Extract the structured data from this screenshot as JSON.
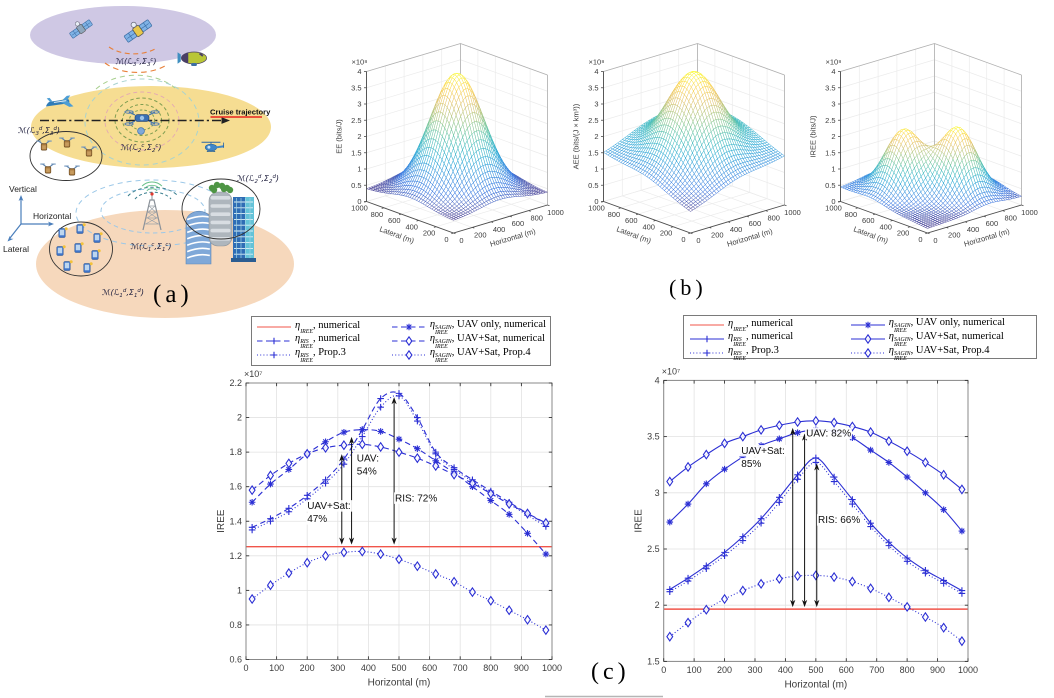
{
  "captions": {
    "a": "(a)",
    "b": "(b)",
    "c": "(c)"
  },
  "colors": {
    "curve_blue": "#2b2fd4",
    "baseline_red": "#f0554a",
    "grid": "#e2e2e2",
    "box": "#888888",
    "tick_text": "#3c3c3c",
    "annotation": "#111111",
    "space_ellipse": "#cfc8e4",
    "air_ellipse": "#f6dd92",
    "ground_ellipse": "#f6d8bc",
    "axis_blue": "#4a7ebb",
    "cruise_red": "#e8241c"
  },
  "diagram": {
    "axis_labels": {
      "vertical": "Vertical",
      "horizontal": "Horizontal",
      "lateral": "Lateral"
    },
    "cruise_label": "Cruise trajectory",
    "node_labels": {
      "satellites": {
        "pre": "ℳ(ℒ",
        "sub1": "3",
        "sup1": "c",
        "mid": ",Σ",
        "sub2": "3",
        "sup2": "c",
        "post": ")"
      },
      "uav_swarm": {
        "pre": "ℳ(ℒ",
        "sub1": "3",
        "sup1": "d",
        "mid": ",Σ",
        "sub2": "3",
        "sup2": "d",
        "post": ")"
      },
      "uav_center": {
        "pre": "ℳ(ℒ",
        "sub1": "2",
        "sup1": "c",
        "mid": ",Σ",
        "sub2": "2",
        "sup2": "c",
        "post": ")"
      },
      "buildings": {
        "pre": "ℳ(ℒ",
        "sub1": "2",
        "sup1": "d",
        "mid": ",Σ",
        "sub2": "2",
        "sup2": "d",
        "post": ")"
      },
      "base_station": {
        "pre": "ℳ(ℒ",
        "sub1": "1",
        "sup1": "c",
        "mid": ",Σ",
        "sub2": "1",
        "sup2": "c",
        "post": ")"
      },
      "devices": {
        "pre": "ℳ(ℒ",
        "sub1": "1",
        "sup1": "d",
        "mid": ",Σ",
        "sub2": "1",
        "sup2": "d",
        "post": ")"
      }
    }
  },
  "chart_data": [
    {
      "id": "surface-ee",
      "type": "surface",
      "xlabel": "Horizontal (m)",
      "ylabel": "Lateral (m)",
      "zlabel": "EE (bits/J)",
      "exp_label": "×10⁸",
      "x_range": [
        0,
        1000
      ],
      "y_range": [
        0,
        1000
      ],
      "z_range": [
        0,
        4
      ],
      "x_tick_step": 200,
      "z_tick_step": 0.5,
      "grid_n": 40,
      "model": {
        "base": 0.38,
        "ramp_x": 0,
        "ramp_y": 0,
        "peaks": [
          {
            "x": 500,
            "y": 500,
            "amp": 3.62,
            "sigma": 300
          }
        ]
      }
    },
    {
      "id": "surface-aee",
      "type": "surface",
      "xlabel": "Horizontal (m)",
      "ylabel": "Lateral (m)",
      "zlabel": "AEE (bits/(J × km³))",
      "exp_label": "×10⁸",
      "x_range": [
        0,
        1000
      ],
      "y_range": [
        0,
        1000
      ],
      "z_range": [
        0,
        4
      ],
      "x_tick_step": 200,
      "z_tick_step": 0.5,
      "grid_n": 40,
      "model": {
        "base": 0.65,
        "ramp_x": 0.00085,
        "ramp_y": 0.00085,
        "peaks": [
          {
            "x": 500,
            "y": 500,
            "amp": 2.5,
            "sigma": 305
          }
        ]
      }
    },
    {
      "id": "surface-iree",
      "type": "surface",
      "xlabel": "Horizontal (m)",
      "ylabel": "Lateral (m)",
      "zlabel": "IREE (bits/J)",
      "exp_label": "×10⁸",
      "x_range": [
        0,
        1000
      ],
      "y_range": [
        0,
        1000
      ],
      "z_range": [
        0,
        4
      ],
      "x_tick_step": 200,
      "z_tick_step": 0.5,
      "grid_n": 40,
      "model": {
        "base": 0.14,
        "ramp_x": 0.00012,
        "ramp_y": 0.0003,
        "peaks": [
          {
            "x": 350,
            "y": 650,
            "amp": 1.85,
            "sigma": 210
          },
          {
            "x": 650,
            "y": 350,
            "amp": 2.0,
            "sigma": 210
          }
        ]
      }
    },
    {
      "id": "line-left",
      "type": "line",
      "xlabel": "Horizontal (m)",
      "ylabel": "IREE",
      "exp_label": "×10⁷",
      "xlim": [
        0,
        1000
      ],
      "ylim": [
        0.6,
        2.2
      ],
      "x_tick_step": 100,
      "y_tick_step": 0.2,
      "x": [
        20,
        80,
        140,
        200,
        260,
        320,
        380,
        440,
        500,
        560,
        620,
        680,
        740,
        800,
        860,
        920,
        980
      ],
      "series": [
        {
          "key": "iree-numerical",
          "style": "baseline",
          "value": 1.253
        },
        {
          "key": "ris-numerical",
          "style": "dashed",
          "marker": "plus",
          "values": [
            1.365,
            1.415,
            1.475,
            1.55,
            1.64,
            1.76,
            1.93,
            2.11,
            2.14,
            2.0,
            1.8,
            1.71,
            1.64,
            1.575,
            1.51,
            1.445,
            1.385
          ]
        },
        {
          "key": "ris-prop3",
          "style": "dotted",
          "marker": "plus",
          "values": [
            1.35,
            1.4,
            1.455,
            1.53,
            1.62,
            1.73,
            1.89,
            2.06,
            2.125,
            1.98,
            1.79,
            1.7,
            1.63,
            1.565,
            1.5,
            1.435,
            1.37
          ]
        },
        {
          "key": "sagin-uav-numerical",
          "style": "dashed",
          "marker": "star",
          "values": [
            1.51,
            1.615,
            1.7,
            1.79,
            1.86,
            1.915,
            1.93,
            1.92,
            1.875,
            1.82,
            1.75,
            1.68,
            1.6,
            1.52,
            1.44,
            1.33,
            1.21
          ]
        },
        {
          "key": "sagin-uavsat-numerical",
          "style": "dashed",
          "marker": "diamond",
          "values": [
            1.58,
            1.665,
            1.735,
            1.79,
            1.825,
            1.84,
            1.845,
            1.83,
            1.8,
            1.765,
            1.72,
            1.67,
            1.62,
            1.56,
            1.5,
            1.445,
            1.39
          ]
        },
        {
          "key": "sagin-uavsat-prop4",
          "style": "dotted",
          "marker": "diamond",
          "values": [
            0.95,
            1.03,
            1.1,
            1.16,
            1.2,
            1.22,
            1.225,
            1.21,
            1.18,
            1.14,
            1.095,
            1.05,
            0.99,
            0.94,
            0.885,
            0.83,
            0.77
          ]
        }
      ],
      "annotations": {
        "texts": [
          {
            "x": 200,
            "y": 1.47,
            "lines": [
              "UAV+Sat:",
              "47%"
            ]
          },
          {
            "x": 362,
            "y": 1.745,
            "lines": [
              "UAV:",
              "54%"
            ]
          },
          {
            "x": 487,
            "y": 1.515,
            "lines": [
              "RIS: 72%"
            ]
          }
        ],
        "arrows": [
          {
            "x": 313,
            "y1": 1.253,
            "y2": 1.8
          },
          {
            "x": 345,
            "y1": 1.253,
            "y2": 1.9
          },
          {
            "x": 484,
            "y1": 1.253,
            "y2": 2.13
          }
        ]
      }
    },
    {
      "id": "line-right",
      "type": "line",
      "xlabel": "Horizontal (m)",
      "ylabel": "IREE",
      "exp_label": "×10⁷",
      "xlim": [
        0,
        1000
      ],
      "ylim": [
        1.5,
        4.0
      ],
      "x_tick_step": 100,
      "y_tick_step": 0.5,
      "x": [
        20,
        80,
        140,
        200,
        260,
        320,
        380,
        440,
        500,
        560,
        620,
        680,
        740,
        800,
        860,
        920,
        980
      ],
      "series": [
        {
          "key": "iree-numerical",
          "style": "baseline",
          "value": 1.965
        },
        {
          "key": "ris-numerical",
          "style": "solid",
          "marker": "plus",
          "values": [
            2.14,
            2.24,
            2.35,
            2.47,
            2.61,
            2.77,
            2.96,
            3.16,
            3.31,
            3.14,
            2.94,
            2.73,
            2.56,
            2.42,
            2.31,
            2.22,
            2.13
          ]
        },
        {
          "key": "ris-prop3",
          "style": "dotted",
          "marker": "plus",
          "values": [
            2.12,
            2.215,
            2.325,
            2.44,
            2.575,
            2.73,
            2.915,
            3.12,
            3.27,
            3.1,
            2.9,
            2.7,
            2.53,
            2.39,
            2.285,
            2.195,
            2.105
          ]
        },
        {
          "key": "sagin-uav-numerical",
          "style": "solid",
          "marker": "star",
          "values": [
            2.74,
            2.9,
            3.08,
            3.21,
            3.32,
            3.42,
            3.48,
            3.535,
            3.56,
            3.55,
            3.49,
            3.38,
            3.27,
            3.14,
            3.0,
            2.85,
            2.66
          ]
        },
        {
          "key": "sagin-uavsat-numerical",
          "style": "solid",
          "marker": "diamond",
          "values": [
            3.1,
            3.23,
            3.34,
            3.44,
            3.5,
            3.56,
            3.6,
            3.63,
            3.64,
            3.625,
            3.59,
            3.54,
            3.46,
            3.37,
            3.27,
            3.16,
            3.03
          ]
        },
        {
          "key": "sagin-uavsat-prop4",
          "style": "dotted",
          "marker": "diamond",
          "values": [
            1.72,
            1.845,
            1.96,
            2.055,
            2.13,
            2.19,
            2.235,
            2.26,
            2.265,
            2.25,
            2.21,
            2.15,
            2.07,
            1.985,
            1.895,
            1.8,
            1.68
          ]
        }
      ],
      "annotations": {
        "texts": [
          {
            "x": 255,
            "y": 3.345,
            "lines": [
              "UAV+Sat:",
              "85%"
            ]
          },
          {
            "x": 468,
            "y": 3.5,
            "lines": [
              "UAV: 82%"
            ]
          },
          {
            "x": 507,
            "y": 2.73,
            "lines": [
              "RIS: 66%"
            ]
          }
        ],
        "arrows": [
          {
            "x": 424,
            "y1": 1.965,
            "y2": 3.595
          },
          {
            "x": 463,
            "y1": 1.965,
            "y2": 3.545
          },
          {
            "x": 503,
            "y1": 1.965,
            "y2": 3.28
          }
        ]
      }
    }
  ],
  "legend": {
    "entries": [
      {
        "key": "iree-numerical",
        "eta_sub": "IREE",
        "eta_sup": "",
        "rest": ", numerical",
        "color": "red",
        "left_style": "solid",
        "right_style": "solid",
        "marker": null,
        "col": 0
      },
      {
        "key": "ris-numerical",
        "eta_sub": "IREE",
        "eta_sup": "RIS",
        "rest": ", numerical",
        "color": "blue",
        "left_style": "dashed",
        "right_style": "solid",
        "marker": "plus",
        "col": 0
      },
      {
        "key": "ris-prop3",
        "eta_sub": "IREE",
        "eta_sup": "RIS",
        "rest": ", Prop.3",
        "color": "blue",
        "left_style": "dotted",
        "right_style": "dotted",
        "marker": "plus",
        "col": 0
      },
      {
        "key": "sagin-uav-numerical",
        "eta_sub": "IREE",
        "eta_sup": "SAGIN",
        "rest": ", UAV only, numerical",
        "color": "blue",
        "left_style": "dashed",
        "right_style": "solid",
        "marker": "star",
        "col": 1
      },
      {
        "key": "sagin-uavsat-numerical",
        "eta_sub": "IREE",
        "eta_sup": "SAGIN",
        "rest": ", UAV+Sat, numerical",
        "color": "blue",
        "left_style": "dashed",
        "right_style": "solid",
        "marker": "diamond",
        "col": 1
      },
      {
        "key": "sagin-uavsat-prop4",
        "eta_sub": "IREE",
        "eta_sup": "SAGIN",
        "rest": ", UAV+Sat, Prop.4",
        "color": "blue",
        "left_style": "dotted",
        "right_style": "dotted",
        "marker": "diamond",
        "col": 1
      }
    ]
  }
}
